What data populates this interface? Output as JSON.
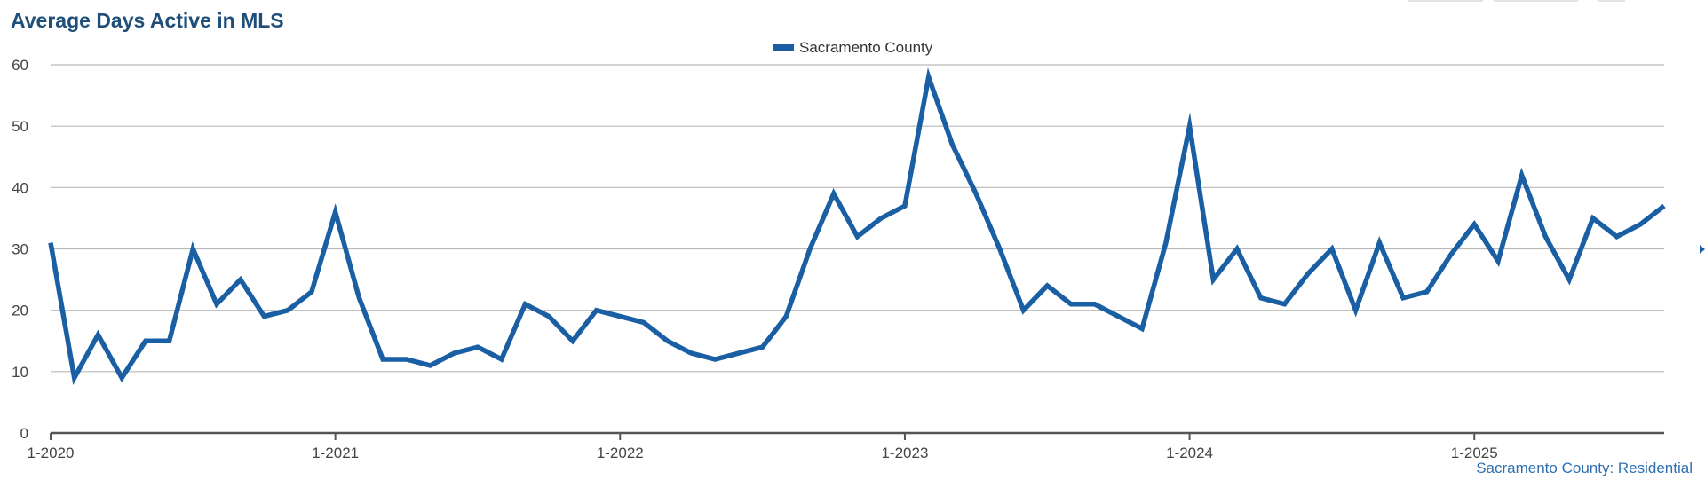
{
  "chart_data": {
    "type": "line",
    "title": "Average Days Active in MLS",
    "footnote": "Sacramento County: Residential",
    "xlabel": "",
    "ylabel": "",
    "ylim": [
      0,
      60
    ],
    "yticks": [
      0,
      10,
      20,
      30,
      40,
      50,
      60
    ],
    "xticks": [
      "1-2020",
      "1-2021",
      "1-2022",
      "1-2023",
      "1-2024",
      "1-2025"
    ],
    "x_start": "2020-01",
    "x_end": "2025-09",
    "grid": true,
    "legend": "top-center",
    "series": [
      {
        "name": "Sacramento County",
        "color": "#1a5fa3",
        "x": [
          "2020-01",
          "2020-02",
          "2020-03",
          "2020-04",
          "2020-05",
          "2020-06",
          "2020-07",
          "2020-08",
          "2020-09",
          "2020-10",
          "2020-11",
          "2020-12",
          "2021-01",
          "2021-02",
          "2021-03",
          "2021-04",
          "2021-05",
          "2021-06",
          "2021-07",
          "2021-08",
          "2021-09",
          "2021-10",
          "2021-11",
          "2021-12",
          "2022-01",
          "2022-02",
          "2022-03",
          "2022-04",
          "2022-05",
          "2022-06",
          "2022-07",
          "2022-08",
          "2022-09",
          "2022-10",
          "2022-11",
          "2022-12",
          "2023-01",
          "2023-02",
          "2023-03",
          "2023-04",
          "2023-05",
          "2023-06",
          "2023-07",
          "2023-08",
          "2023-09",
          "2023-10",
          "2023-11",
          "2023-12",
          "2024-01",
          "2024-02",
          "2024-03",
          "2024-04",
          "2024-05",
          "2024-06",
          "2024-07",
          "2024-08",
          "2024-09",
          "2024-10",
          "2024-11",
          "2024-12",
          "2025-01",
          "2025-02",
          "2025-03",
          "2025-04",
          "2025-05",
          "2025-06",
          "2025-07",
          "2025-08",
          "2025-09"
        ],
        "values": [
          31,
          9,
          16,
          9,
          15,
          15,
          30,
          21,
          25,
          19,
          20,
          23,
          36,
          22,
          12,
          12,
          11,
          13,
          14,
          12,
          21,
          19,
          15,
          20,
          19,
          18,
          15,
          13,
          12,
          13,
          14,
          19,
          30,
          39,
          32,
          35,
          37,
          58,
          47,
          39,
          30,
          20,
          24,
          21,
          21,
          19,
          17,
          31,
          50,
          25,
          30,
          22,
          21,
          26,
          30,
          20,
          31,
          22,
          23,
          29,
          34,
          28,
          42,
          32,
          25,
          35,
          32,
          34,
          37
        ]
      }
    ]
  }
}
